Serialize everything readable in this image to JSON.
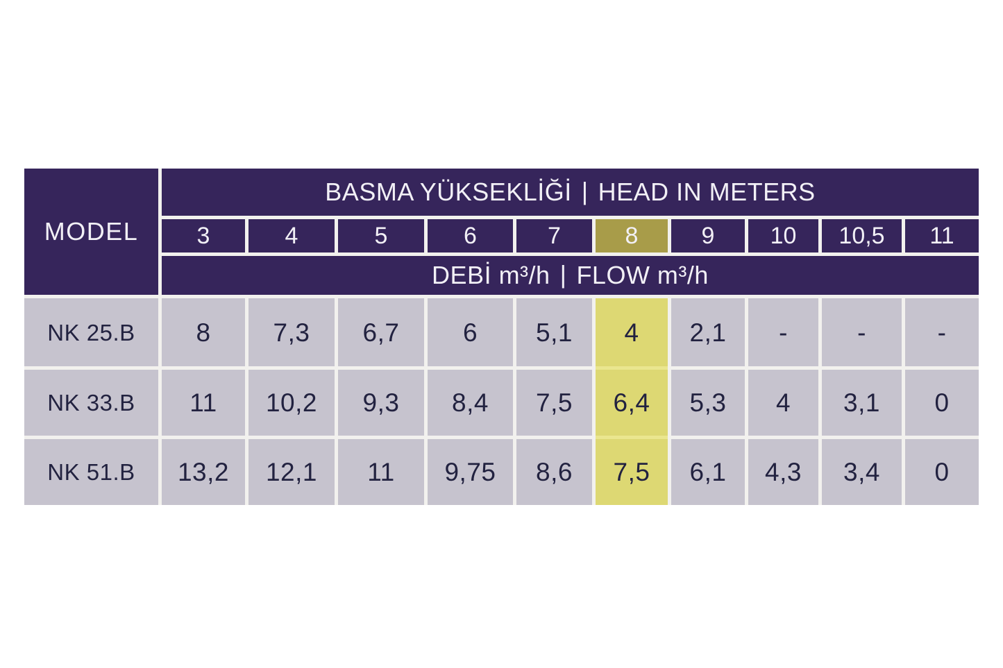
{
  "chart_data": {
    "type": "table",
    "title": "BASMA YÜKSEKLİĞİ | HEAD IN METERS",
    "subtitle": "DEBİ m³/h | FLOW m³/h",
    "header": {
      "model_label": "MODEL",
      "head_title_tr": "BASMA YÜKSEKLİĞİ",
      "separator": "|",
      "head_title_en": "HEAD IN METERS",
      "head_values": [
        "3",
        "4",
        "5",
        "6",
        "7",
        "8",
        "9",
        "10",
        "10,5",
        "11"
      ],
      "highlighted_head_index": 5,
      "highlighted_head_value": "8",
      "flow_title_tr": "DEBİ m³/h",
      "flow_title_en": "FLOW m³/h"
    },
    "rows": [
      {
        "model": "NK 25.B",
        "flows": [
          "8",
          "7,3",
          "6,7",
          "6",
          "5,1",
          "4",
          "2,1",
          "-",
          "-",
          "-"
        ]
      },
      {
        "model": "NK 33.B",
        "flows": [
          "11",
          "10,2",
          "9,3",
          "8,4",
          "7,5",
          "6,4",
          "5,3",
          "4",
          "3,1",
          "0"
        ]
      },
      {
        "model": "NK 51.B",
        "flows": [
          "13,2",
          "12,1",
          "11",
          "9,75",
          "8,6",
          "7,5",
          "6,1",
          "4,3",
          "3,4",
          "0"
        ]
      }
    ]
  },
  "colors": {
    "header_purple": "#36255B",
    "highlight_olive": "#A89C49",
    "highlight_yellow": "#DDD873",
    "highlight_gap_yellow": "#EAE68F",
    "cell_gray": "#C6C3CE",
    "gap_white": "#F2F1EE",
    "header_text": "#F2F0F6",
    "body_text": "#222240"
  }
}
